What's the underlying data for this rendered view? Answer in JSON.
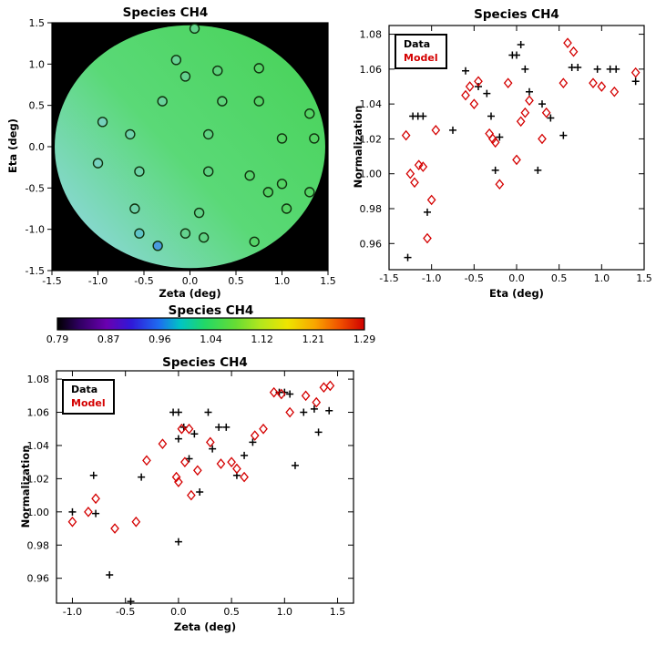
{
  "accent_red": "#d40000",
  "chart_data": [
    {
      "type": "scatter",
      "name": "spatial-map",
      "title": "Species CH4",
      "xlabel": "Zeta (deg)",
      "ylabel": "Eta (deg)",
      "xlim": [
        -1.5,
        1.5
      ],
      "ylim": [
        -1.5,
        1.5
      ],
      "xtick_vals": [
        -1.5,
        -1.0,
        -0.5,
        0.0,
        0.5,
        1.0,
        1.5
      ],
      "xtick_labels": [
        "-1.5",
        "-1.0",
        "-0.5",
        "0.0",
        "0.5",
        "1.0",
        "1.5"
      ],
      "ytick_vals": [
        -1.5,
        -1.0,
        -0.5,
        0.0,
        0.5,
        1.0,
        1.5
      ],
      "ytick_labels": [
        "-1.5",
        "-1.0",
        "-0.5",
        "0.0",
        "0.5",
        "1.0",
        "1.5"
      ],
      "background": "#000000",
      "disk": {
        "center": [
          0.0,
          0.0
        ],
        "radius": 1.47,
        "gradient": [
          "#8fd8df",
          "#5ad977",
          "#4cd45f"
        ]
      },
      "marker": "circle",
      "marker_edge_color": "#10320f",
      "points": [
        [
          0.05,
          1.43
        ],
        [
          -0.15,
          1.05
        ],
        [
          -0.05,
          0.85
        ],
        [
          0.3,
          0.92
        ],
        [
          0.75,
          0.95
        ],
        [
          -0.3,
          0.55
        ],
        [
          0.35,
          0.55
        ],
        [
          0.75,
          0.55
        ],
        [
          1.3,
          0.4
        ],
        [
          -0.95,
          0.3
        ],
        [
          -0.65,
          0.15
        ],
        [
          0.2,
          0.15
        ],
        [
          1.0,
          0.1
        ],
        [
          1.35,
          0.1
        ],
        [
          -1.0,
          -0.2
        ],
        [
          -0.55,
          -0.3
        ],
        [
          0.2,
          -0.3
        ],
        [
          0.65,
          -0.35
        ],
        [
          1.0,
          -0.45
        ],
        [
          0.85,
          -0.55
        ],
        [
          1.3,
          -0.55
        ],
        [
          -0.6,
          -0.75
        ],
        [
          0.1,
          -0.8
        ],
        [
          1.05,
          -0.75
        ],
        [
          -0.55,
          -1.05,
          "#5fc3c8"
        ],
        [
          -0.05,
          -1.05
        ],
        [
          0.15,
          -1.1
        ],
        [
          -0.35,
          -1.2,
          "#4a9ade"
        ],
        [
          0.7,
          -1.15
        ]
      ]
    },
    {
      "type": "scatter",
      "name": "normalization-vs-eta",
      "title": "Species CH4",
      "xlabel": "Eta (deg)",
      "ylabel": "Normalization",
      "xlim": [
        -1.5,
        1.5
      ],
      "ylim": [
        0.945,
        1.085
      ],
      "xtick_vals": [
        -1.5,
        -1.0,
        -0.5,
        0.0,
        0.5,
        1.0,
        1.5
      ],
      "xtick_labels": [
        "-1.5",
        "-1.0",
        "-0.5",
        "0.0",
        "0.5",
        "1.0",
        "1.5"
      ],
      "ytick_vals": [
        0.96,
        0.98,
        1.0,
        1.02,
        1.04,
        1.06,
        1.08
      ],
      "ytick_labels": [
        "0.96",
        "0.98",
        "1.00",
        "1.02",
        "1.04",
        "1.06",
        "1.08"
      ],
      "legend": {
        "entries": [
          {
            "label": "Data",
            "color": "#000000"
          },
          {
            "label": "Model",
            "color": "#d40000"
          }
        ]
      },
      "series": [
        {
          "name": "Data",
          "marker": "plus",
          "color": "#000000",
          "points": [
            [
              -1.28,
              0.952
            ],
            [
              -1.22,
              1.033
            ],
            [
              -1.16,
              1.033
            ],
            [
              -1.1,
              1.033
            ],
            [
              -1.05,
              0.978
            ],
            [
              -0.75,
              1.025
            ],
            [
              -0.6,
              1.059
            ],
            [
              -0.45,
              1.05
            ],
            [
              -0.35,
              1.046
            ],
            [
              -0.3,
              1.033
            ],
            [
              -0.25,
              1.002
            ],
            [
              -0.2,
              1.021
            ],
            [
              -0.05,
              1.068
            ],
            [
              0.0,
              1.068
            ],
            [
              0.05,
              1.074
            ],
            [
              0.1,
              1.06
            ],
            [
              0.15,
              1.047
            ],
            [
              0.25,
              1.002
            ],
            [
              0.3,
              1.04
            ],
            [
              0.4,
              1.032
            ],
            [
              0.55,
              1.022
            ],
            [
              0.65,
              1.061
            ],
            [
              0.72,
              1.061
            ],
            [
              0.95,
              1.06
            ],
            [
              1.1,
              1.06
            ],
            [
              1.17,
              1.06
            ],
            [
              1.4,
              1.053
            ]
          ]
        },
        {
          "name": "Model",
          "marker": "diamond",
          "color": "#d40000",
          "points": [
            [
              -1.3,
              1.022
            ],
            [
              -1.25,
              1.0
            ],
            [
              -1.2,
              0.995
            ],
            [
              -1.15,
              1.005
            ],
            [
              -1.1,
              1.004
            ],
            [
              -1.05,
              0.963
            ],
            [
              -1.0,
              0.985
            ],
            [
              -0.95,
              1.025
            ],
            [
              -0.6,
              1.045
            ],
            [
              -0.55,
              1.05
            ],
            [
              -0.5,
              1.04
            ],
            [
              -0.45,
              1.053
            ],
            [
              -0.32,
              1.023
            ],
            [
              -0.28,
              1.02
            ],
            [
              -0.25,
              1.018
            ],
            [
              -0.2,
              0.994
            ],
            [
              -0.1,
              1.052
            ],
            [
              0.0,
              1.008
            ],
            [
              0.05,
              1.03
            ],
            [
              0.1,
              1.035
            ],
            [
              0.15,
              1.042
            ],
            [
              0.3,
              1.02
            ],
            [
              0.35,
              1.035
            ],
            [
              0.55,
              1.052
            ],
            [
              0.6,
              1.075
            ],
            [
              0.67,
              1.07
            ],
            [
              0.9,
              1.052
            ],
            [
              1.0,
              1.05
            ],
            [
              1.15,
              1.047
            ],
            [
              1.4,
              1.058
            ]
          ]
        }
      ]
    },
    {
      "type": "scatter",
      "name": "normalization-vs-zeta",
      "title": "Species CH4",
      "xlabel": "Zeta (deg)",
      "ylabel": "Normalization",
      "xlim": [
        -1.15,
        1.65
      ],
      "ylim": [
        0.945,
        1.085
      ],
      "xtick_vals": [
        -1.0,
        -0.5,
        0.0,
        0.5,
        1.0,
        1.5
      ],
      "xtick_labels": [
        "-1.0",
        "-0.5",
        "0.0",
        "0.5",
        "1.0",
        "1.5"
      ],
      "ytick_vals": [
        0.96,
        0.98,
        1.0,
        1.02,
        1.04,
        1.06,
        1.08
      ],
      "ytick_labels": [
        "0.96",
        "0.98",
        "1.00",
        "1.02",
        "1.04",
        "1.06",
        "1.08"
      ],
      "legend": {
        "entries": [
          {
            "label": "Data",
            "color": "#000000"
          },
          {
            "label": "Model",
            "color": "#d40000"
          }
        ]
      },
      "series": [
        {
          "name": "Data",
          "marker": "plus",
          "color": "#000000",
          "points": [
            [
              -1.0,
              1.0
            ],
            [
              -0.8,
              1.022
            ],
            [
              -0.78,
              0.999
            ],
            [
              -0.65,
              0.962
            ],
            [
              -0.45,
              0.946
            ],
            [
              -0.35,
              1.021
            ],
            [
              -0.05,
              1.06
            ],
            [
              0.0,
              1.06
            ],
            [
              0.0,
              1.044
            ],
            [
              0.0,
              0.982
            ],
            [
              0.05,
              1.051
            ],
            [
              0.1,
              1.032
            ],
            [
              0.15,
              1.047
            ],
            [
              0.2,
              1.012
            ],
            [
              0.28,
              1.06
            ],
            [
              0.32,
              1.038
            ],
            [
              0.38,
              1.051
            ],
            [
              0.45,
              1.051
            ],
            [
              0.55,
              1.022
            ],
            [
              0.62,
              1.034
            ],
            [
              0.7,
              1.042
            ],
            [
              0.95,
              1.072
            ],
            [
              1.0,
              1.072
            ],
            [
              1.05,
              1.071
            ],
            [
              1.1,
              1.028
            ],
            [
              1.18,
              1.06
            ],
            [
              1.28,
              1.062
            ],
            [
              1.32,
              1.048
            ],
            [
              1.42,
              1.061
            ]
          ]
        },
        {
          "name": "Model",
          "marker": "diamond",
          "color": "#d40000",
          "points": [
            [
              -1.0,
              0.994
            ],
            [
              -0.85,
              1.0
            ],
            [
              -0.78,
              1.008
            ],
            [
              -0.6,
              0.99
            ],
            [
              -0.4,
              0.994
            ],
            [
              -0.3,
              1.031
            ],
            [
              -0.15,
              1.041
            ],
            [
              -0.02,
              1.021
            ],
            [
              0.0,
              1.018
            ],
            [
              0.03,
              1.05
            ],
            [
              0.06,
              1.03
            ],
            [
              0.1,
              1.05
            ],
            [
              0.12,
              1.01
            ],
            [
              0.18,
              1.025
            ],
            [
              0.3,
              1.042
            ],
            [
              0.4,
              1.029
            ],
            [
              0.5,
              1.03
            ],
            [
              0.55,
              1.026
            ],
            [
              0.62,
              1.021
            ],
            [
              0.72,
              1.046
            ],
            [
              0.8,
              1.05
            ],
            [
              0.9,
              1.072
            ],
            [
              0.97,
              1.071
            ],
            [
              1.05,
              1.06
            ],
            [
              1.2,
              1.07
            ],
            [
              1.3,
              1.066
            ],
            [
              1.37,
              1.075
            ],
            [
              1.43,
              1.076
            ]
          ]
        }
      ]
    },
    {
      "type": "colorbar",
      "name": "colorbar",
      "title": "Species CH4",
      "tick_labels": [
        "0.79",
        "0.87",
        "0.96",
        "1.04",
        "1.12",
        "1.21",
        "1.29"
      ],
      "gradient": [
        [
          0.0,
          "#000000"
        ],
        [
          0.07,
          "#2e0060"
        ],
        [
          0.16,
          "#6a00b0"
        ],
        [
          0.24,
          "#3018d8"
        ],
        [
          0.33,
          "#1e6cf0"
        ],
        [
          0.4,
          "#00c4c4"
        ],
        [
          0.48,
          "#22d866"
        ],
        [
          0.58,
          "#66dc34"
        ],
        [
          0.66,
          "#b2e61e"
        ],
        [
          0.75,
          "#eee400"
        ],
        [
          0.84,
          "#f8a400"
        ],
        [
          0.92,
          "#f05000"
        ],
        [
          1.0,
          "#cf0000"
        ]
      ]
    }
  ]
}
